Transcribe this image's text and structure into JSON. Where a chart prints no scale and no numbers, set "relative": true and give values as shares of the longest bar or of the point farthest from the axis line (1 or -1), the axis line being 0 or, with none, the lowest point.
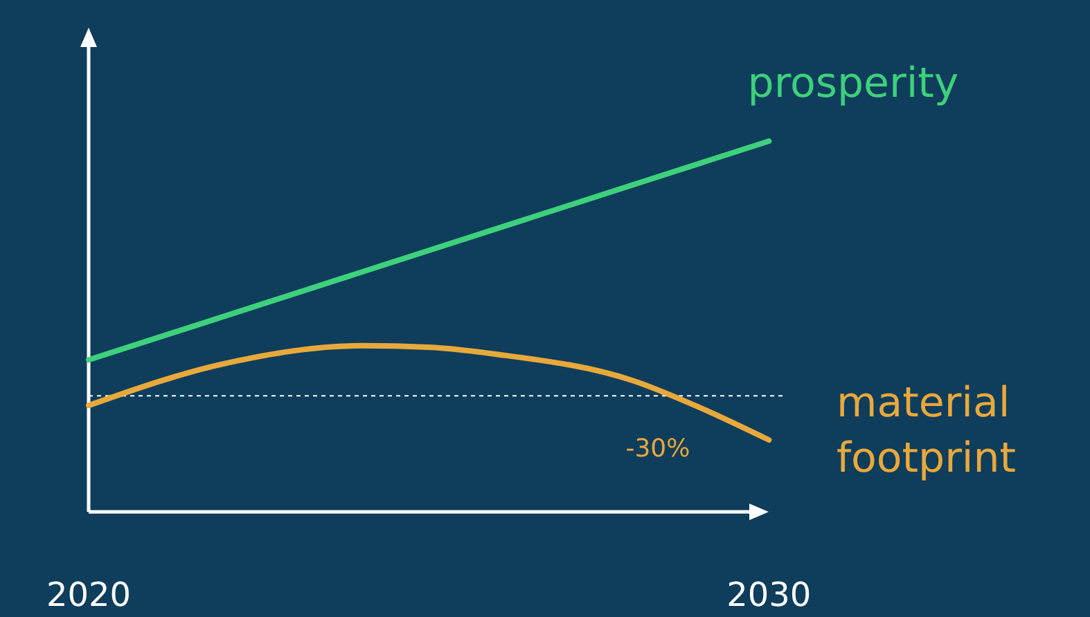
{
  "chart_data": {
    "type": "line",
    "relative": true,
    "xlim": [
      2020,
      2030.2
    ],
    "xticks": [
      2020,
      2030
    ],
    "grid": false,
    "marker": "none",
    "line_style": "solid",
    "series": [
      {
        "name": "prosperity",
        "color": "#3dd17c",
        "x": [
          2020,
          2030
        ],
        "values": [
          0.41,
          1
        ]
      },
      {
        "name": "material footprint",
        "color": "#e8a93b",
        "x": [
          2020,
          2022,
          2024,
          2025,
          2026,
          2028,
          2029,
          2030
        ],
        "values": [
          0.287,
          0.4,
          0.448,
          0.444,
          0.425,
          0.354,
          0.28,
          0.194
        ]
      }
    ],
    "ref_lines": [
      {
        "axis": "y",
        "value": 0.313,
        "color": "#ffffff",
        "line_style": "dotted"
      }
    ],
    "annotations": [
      "-30%"
    ]
  }
}
